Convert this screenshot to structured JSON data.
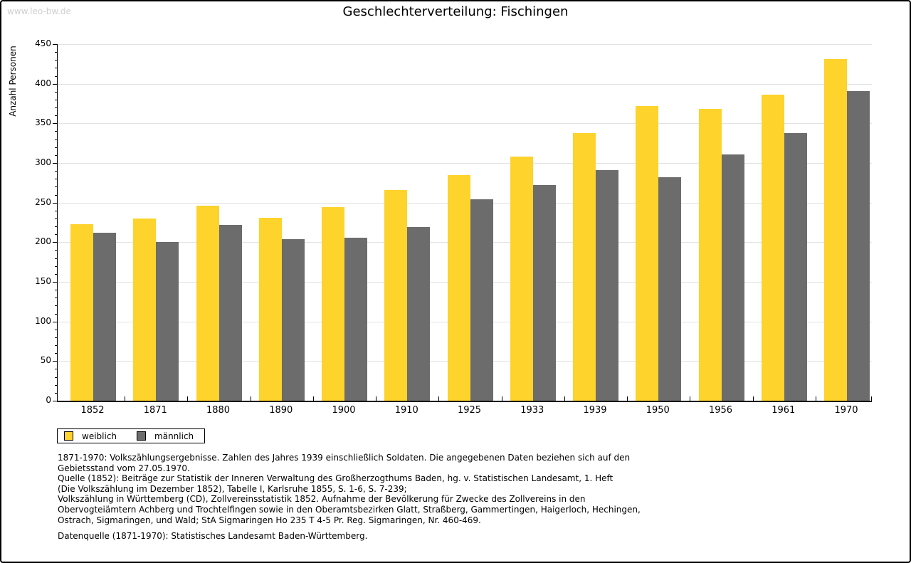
{
  "watermark": "www.leo-bw.de",
  "title": "Geschlechterverteilung: Fischingen",
  "chart_data": {
    "type": "bar",
    "title": "Geschlechterverteilung: Fischingen",
    "xlabel": "",
    "ylabel": "Anzahl Personen",
    "ylim": [
      0,
      450
    ],
    "ytick_major": 50,
    "ytick_minor": 10,
    "grid": true,
    "legend_position": "bottom-left",
    "categories": [
      "1852",
      "1871",
      "1880",
      "1890",
      "1900",
      "1910",
      "1925",
      "1933",
      "1939",
      "1950",
      "1956",
      "1961",
      "1970"
    ],
    "series": [
      {
        "name": "weiblich",
        "color": "#FDD32C",
        "values": [
          223,
          230,
          246,
          231,
          244,
          266,
          285,
          308,
          338,
          372,
          368,
          386,
          431
        ]
      },
      {
        "name": "männlich",
        "color": "#6C6C6C",
        "values": [
          212,
          200,
          222,
          204,
          206,
          219,
          254,
          272,
          291,
          282,
          311,
          338,
          391
        ]
      }
    ]
  },
  "legend": {
    "items": [
      {
        "label": "weiblich",
        "color": "#FDD32C"
      },
      {
        "label": "männlich",
        "color": "#6C6C6C"
      }
    ]
  },
  "footnote_lines": [
    "1871-1970: Volkszählungsergebnisse. Zahlen des Jahres 1939 einschließlich Soldaten. Die angegebenen Daten beziehen sich auf den",
    "Gebietsstand vom 27.05.1970.",
    "Quelle (1852): Beiträge zur Statistik der Inneren Verwaltung des Großherzogthums Baden, hg. v. Statistischen Landesamt, 1. Heft",
    "(Die Volkszählung im Dezember 1852), Tabelle I, Karlsruhe 1855, S. 1-6, S. 7-239;",
    "Volkszählung in Württemberg (CD), Zollvereinsstatistik 1852. Aufnahme der Bevölkerung für Zwecke des Zollvereins in den",
    "Obervogteiämtern Achberg und Trochtelfingen sowie in den Oberamtsbezirken Glatt, Straßberg, Gammertingen, Haigerloch, Hechingen,",
    "Ostrach, Sigmaringen, und Wald; StA Sigmaringen Ho 235 T 4-5 Pr. Reg. Sigmaringen, Nr. 460-469."
  ],
  "datasource": "Datenquelle (1871-1970): Statistisches Landesamt Baden-Württemberg."
}
